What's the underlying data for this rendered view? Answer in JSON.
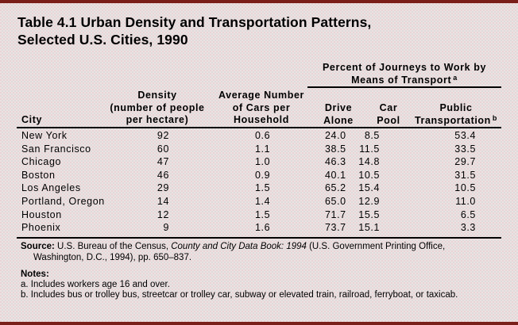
{
  "title": {
    "line1": "Table 4.1  Urban Density and Transportation Patterns,",
    "line2": "Selected U.S. Cities, 1990"
  },
  "colors": {
    "frame": "#7a1f1a",
    "background": "#ece2e2",
    "text": "#000000"
  },
  "headers": {
    "group": {
      "line1": "Percent of Journeys to Work by",
      "line2": "Means of Transport",
      "footnote": "a"
    },
    "city": "City",
    "density": [
      "Density",
      "(number of people",
      "per hectare)"
    ],
    "cars": [
      "Average Number",
      "of Cars per",
      "Household"
    ],
    "drive_alone": [
      "Drive",
      "Alone"
    ],
    "car_pool": [
      "Car",
      "Pool"
    ],
    "public": [
      "Public",
      "Transportation"
    ],
    "public_footnote": "b"
  },
  "rows": [
    {
      "city": "New York",
      "density": "92",
      "cars": "0.6",
      "drive_alone": "24.0",
      "car_pool": "8.5",
      "public": "53.4"
    },
    {
      "city": "San Francisco",
      "density": "60",
      "cars": "1.1",
      "drive_alone": "38.5",
      "car_pool": "11.5",
      "public": "33.5"
    },
    {
      "city": "Chicago",
      "density": "47",
      "cars": "1.0",
      "drive_alone": "46.3",
      "car_pool": "14.8",
      "public": "29.7"
    },
    {
      "city": "Boston",
      "density": "46",
      "cars": "0.9",
      "drive_alone": "40.1",
      "car_pool": "10.5",
      "public": "31.5"
    },
    {
      "city": "Los Angeles",
      "density": "29",
      "cars": "1.5",
      "drive_alone": "65.2",
      "car_pool": "15.4",
      "public": "10.5"
    },
    {
      "city": "Portland, Oregon",
      "density": "14",
      "cars": "1.4",
      "drive_alone": "65.0",
      "car_pool": "12.9",
      "public": "11.0"
    },
    {
      "city": "Houston",
      "density": "12",
      "cars": "1.5",
      "drive_alone": "71.7",
      "car_pool": "15.5",
      "public": "6.5"
    },
    {
      "city": "Phoenix",
      "density": "9",
      "cars": "1.6",
      "drive_alone": "73.7",
      "car_pool": "15.1",
      "public": "3.3"
    }
  ],
  "source": {
    "label": "Source:",
    "text_before": " U.S. Bureau of the Census, ",
    "italic": "County and City Data Book: 1994",
    "text_after": " (U.S. Government Printing Office,",
    "line2": "Washington, D.C., 1994), pp. 650–837."
  },
  "notes": {
    "label": "Notes:",
    "items": [
      "a.  Includes workers age 16 and over.",
      "b.  Includes bus or trolley bus, streetcar or trolley car, subway or elevated train, railroad, ferryboat, or taxicab."
    ]
  }
}
